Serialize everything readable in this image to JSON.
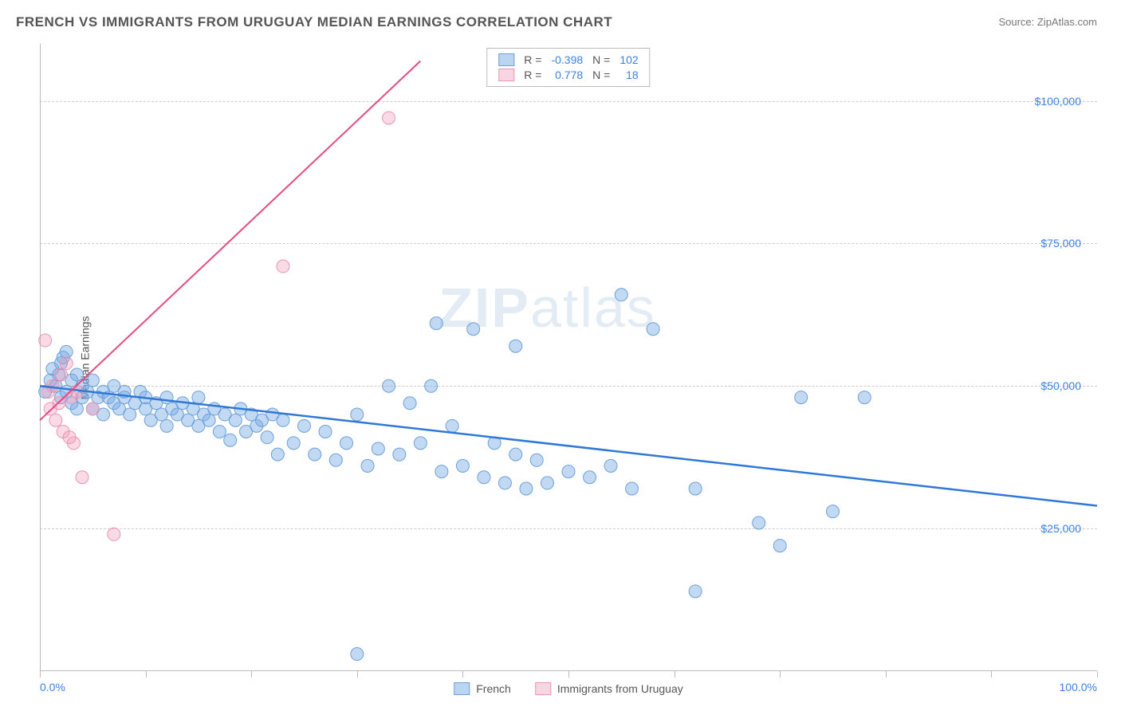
{
  "title": "FRENCH VS IMMIGRANTS FROM URUGUAY MEDIAN EARNINGS CORRELATION CHART",
  "source": "Source: ZipAtlas.com",
  "watermark_zip": "ZIP",
  "watermark_atlas": "atlas",
  "chart": {
    "type": "scatter",
    "ylabel": "Median Earnings",
    "xlim": [
      0,
      100
    ],
    "ylim": [
      0,
      110000
    ],
    "grid_color": "#cccccc",
    "axis_color": "#bbbbbb",
    "tick_label_color": "#3b82e6",
    "background_color": "#ffffff",
    "ytick_labels": [
      {
        "v": 25000,
        "label": "$25,000"
      },
      {
        "v": 50000,
        "label": "$50,000"
      },
      {
        "v": 75000,
        "label": "$75,000"
      },
      {
        "v": 100000,
        "label": "$100,000"
      }
    ],
    "xtick_marks": [
      0,
      10,
      20,
      30,
      40,
      50,
      60,
      70,
      80,
      90,
      100
    ],
    "xtick_labels": [
      {
        "v": 0,
        "label": "0.0%"
      },
      {
        "v": 100,
        "label": "100.0%"
      }
    ],
    "series": [
      {
        "name": "French",
        "color_fill": "rgba(120, 170, 230, 0.45)",
        "color_stroke": "#6ea0d8",
        "marker_radius": 8,
        "trend": {
          "x1": 0,
          "y1": 50000,
          "x2": 100,
          "y2": 29000,
          "stroke": "#2f78d6",
          "width": 2.5
        },
        "R": "-0.398",
        "N": "102",
        "points": [
          [
            0.5,
            49000
          ],
          [
            1,
            51000
          ],
          [
            1.2,
            53000
          ],
          [
            1.5,
            50000
          ],
          [
            1.8,
            52000
          ],
          [
            2,
            48000
          ],
          [
            2,
            54000
          ],
          [
            2.2,
            55000
          ],
          [
            2.5,
            49000
          ],
          [
            2.5,
            56000
          ],
          [
            3,
            51000
          ],
          [
            3,
            47000
          ],
          [
            3.5,
            52000
          ],
          [
            3.5,
            46000
          ],
          [
            4,
            50000
          ],
          [
            4,
            48000
          ],
          [
            4.5,
            49000
          ],
          [
            5,
            51000
          ],
          [
            5,
            46000
          ],
          [
            5.5,
            48000
          ],
          [
            6,
            49000
          ],
          [
            6,
            45000
          ],
          [
            6.5,
            48000
          ],
          [
            7,
            47000
          ],
          [
            7,
            50000
          ],
          [
            7.5,
            46000
          ],
          [
            8,
            48000
          ],
          [
            8,
            49000
          ],
          [
            8.5,
            45000
          ],
          [
            9,
            47000
          ],
          [
            9.5,
            49000
          ],
          [
            10,
            46000
          ],
          [
            10,
            48000
          ],
          [
            10.5,
            44000
          ],
          [
            11,
            47000
          ],
          [
            11.5,
            45000
          ],
          [
            12,
            48000
          ],
          [
            12,
            43000
          ],
          [
            12.5,
            46000
          ],
          [
            13,
            45000
          ],
          [
            13.5,
            47000
          ],
          [
            14,
            44000
          ],
          [
            14.5,
            46000
          ],
          [
            15,
            48000
          ],
          [
            15,
            43000
          ],
          [
            15.5,
            45000
          ],
          [
            16,
            44000
          ],
          [
            16.5,
            46000
          ],
          [
            17,
            42000
          ],
          [
            17.5,
            45000
          ],
          [
            18,
            40500
          ],
          [
            18.5,
            44000
          ],
          [
            19,
            46000
          ],
          [
            19.5,
            42000
          ],
          [
            20,
            45000
          ],
          [
            20.5,
            43000
          ],
          [
            21,
            44000
          ],
          [
            21.5,
            41000
          ],
          [
            22,
            45000
          ],
          [
            22.5,
            38000
          ],
          [
            23,
            44000
          ],
          [
            24,
            40000
          ],
          [
            25,
            43000
          ],
          [
            26,
            38000
          ],
          [
            27,
            42000
          ],
          [
            28,
            37000
          ],
          [
            29,
            40000
          ],
          [
            30,
            45000
          ],
          [
            31,
            36000
          ],
          [
            32,
            39000
          ],
          [
            33,
            50000
          ],
          [
            34,
            38000
          ],
          [
            35,
            47000
          ],
          [
            36,
            40000
          ],
          [
            37,
            50000
          ],
          [
            37.5,
            61000
          ],
          [
            38,
            35000
          ],
          [
            39,
            43000
          ],
          [
            40,
            36000
          ],
          [
            41,
            60000
          ],
          [
            42,
            34000
          ],
          [
            43,
            40000
          ],
          [
            44,
            33000
          ],
          [
            45,
            38000
          ],
          [
            46,
            32000
          ],
          [
            47,
            37000
          ],
          [
            48,
            33000
          ],
          [
            50,
            35000
          ],
          [
            52,
            34000
          ],
          [
            54,
            36000
          ],
          [
            55,
            66000
          ],
          [
            56,
            32000
          ],
          [
            58,
            60000
          ],
          [
            62,
            14000
          ],
          [
            62,
            32000
          ],
          [
            68,
            26000
          ],
          [
            70,
            22000
          ],
          [
            72,
            48000
          ],
          [
            75,
            28000
          ],
          [
            78,
            48000
          ],
          [
            30,
            3000
          ],
          [
            45,
            57000
          ]
        ]
      },
      {
        "name": "Immigrants from Uruguay",
        "color_fill": "rgba(240, 150, 180, 0.35)",
        "color_stroke": "#e996b4",
        "marker_radius": 8,
        "trend": {
          "x1": 0,
          "y1": 44000,
          "x2": 36,
          "y2": 107000,
          "stroke": "#e34b80",
          "width": 2
        },
        "R": "0.778",
        "N": "18",
        "points": [
          [
            0.5,
            58000
          ],
          [
            0.8,
            49000
          ],
          [
            1,
            46000
          ],
          [
            1.2,
            50000
          ],
          [
            1.5,
            44000
          ],
          [
            1.8,
            47000
          ],
          [
            2,
            52000
          ],
          [
            2.2,
            42000
          ],
          [
            2.5,
            54000
          ],
          [
            2.8,
            41000
          ],
          [
            3,
            48000
          ],
          [
            3.2,
            40000
          ],
          [
            3.5,
            49000
          ],
          [
            4,
            34000
          ],
          [
            5,
            46000
          ],
          [
            7,
            24000
          ],
          [
            23,
            71000
          ],
          [
            33,
            97000
          ]
        ]
      }
    ],
    "legend_swatch_blue": {
      "fill": "rgba(120,170,230,0.5)",
      "stroke": "#6ea0d8"
    },
    "legend_swatch_pink": {
      "fill": "rgba(240,150,180,0.4)",
      "stroke": "#e996b4"
    },
    "stats_labels": {
      "R": "R =",
      "N": "N ="
    }
  }
}
